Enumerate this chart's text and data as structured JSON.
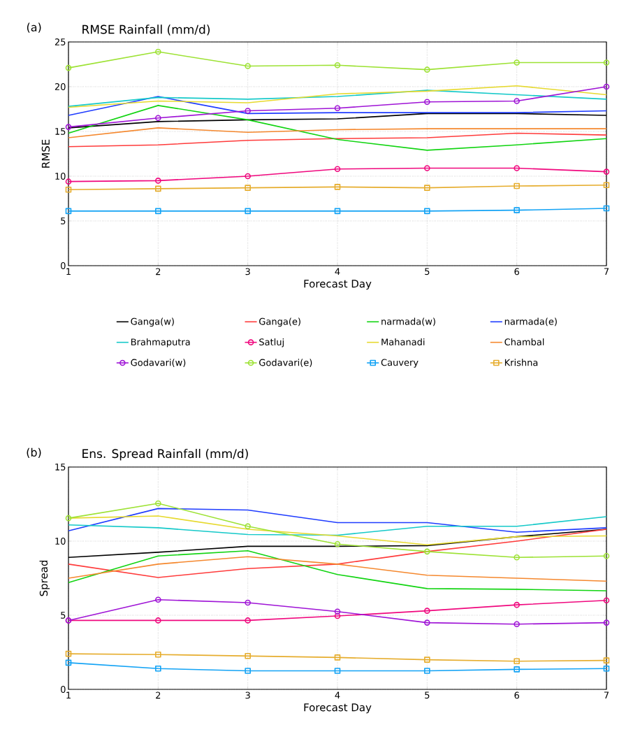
{
  "chart_data": [
    {
      "type": "line",
      "title": "RMSE Rainfall (mm/d)",
      "annotations": [
        "(a)"
      ],
      "xlabel": "Forecast Day",
      "ylabel": "RMSE",
      "x": [
        1,
        2,
        3,
        4,
        5,
        6,
        7
      ],
      "xlim": [
        1,
        7
      ],
      "xticks": [
        1,
        2,
        3,
        4,
        5,
        6,
        7
      ],
      "ylim": [
        0,
        25
      ],
      "yticks": [
        0,
        5,
        10,
        15,
        20,
        25
      ],
      "grid": true,
      "legend": "bottom",
      "series": [
        {
          "name": "Ganga(w)",
          "color": "#000000",
          "marker": "none",
          "values": [
            15.4,
            16.1,
            16.3,
            16.4,
            17.0,
            17.0,
            16.8
          ]
        },
        {
          "name": "Ganga(e)",
          "color": "#ff3b3b",
          "marker": "none",
          "values": [
            13.3,
            13.5,
            14.0,
            14.2,
            14.3,
            14.8,
            14.6
          ]
        },
        {
          "name": "narmada(w)",
          "color": "#11d411",
          "marker": "none",
          "values": [
            14.8,
            17.9,
            16.3,
            14.1,
            12.9,
            13.5,
            14.2
          ]
        },
        {
          "name": "narmada(e)",
          "color": "#1f3cff",
          "marker": "none",
          "values": [
            16.8,
            18.9,
            17.0,
            17.1,
            17.1,
            17.1,
            17.3
          ]
        },
        {
          "name": "Brahmaputra",
          "color": "#15c9c9",
          "marker": "none",
          "values": [
            17.8,
            18.8,
            18.6,
            18.9,
            19.6,
            19.1,
            18.6
          ]
        },
        {
          "name": "Satluj",
          "color": "#f0087e",
          "marker": "circle",
          "values": [
            9.4,
            9.5,
            10.0,
            10.8,
            10.9,
            10.9,
            10.5
          ]
        },
        {
          "name": "Mahanadi",
          "color": "#e6d92e",
          "marker": "none",
          "values": [
            17.7,
            18.4,
            18.2,
            19.2,
            19.5,
            20.1,
            19.1
          ]
        },
        {
          "name": "Chambal",
          "color": "#f5882e",
          "marker": "none",
          "values": [
            14.3,
            15.4,
            14.9,
            15.2,
            15.3,
            15.3,
            15.3
          ]
        },
        {
          "name": "Godavari(w)",
          "color": "#9f14d6",
          "marker": "circle",
          "values": [
            15.5,
            16.5,
            17.3,
            17.6,
            18.3,
            18.4,
            20.0
          ]
        },
        {
          "name": "Godavari(e)",
          "color": "#9de234",
          "marker": "circle",
          "values": [
            22.1,
            23.9,
            22.3,
            22.4,
            21.9,
            22.7,
            22.7
          ]
        },
        {
          "name": "Cauvery",
          "color": "#13a3f5",
          "marker": "square",
          "values": [
            6.1,
            6.1,
            6.1,
            6.1,
            6.1,
            6.2,
            6.4
          ]
        },
        {
          "name": "Krishna",
          "color": "#e6ad2e",
          "marker": "square",
          "values": [
            8.5,
            8.6,
            8.7,
            8.8,
            8.7,
            8.9,
            9.0
          ]
        }
      ]
    },
    {
      "type": "line",
      "title": "Ens. Spread Rainfall (mm/d)",
      "annotations": [
        "(b)"
      ],
      "xlabel": "Forecast Day",
      "ylabel": "Spread",
      "x": [
        1,
        2,
        3,
        4,
        5,
        6,
        7
      ],
      "xlim": [
        1,
        7
      ],
      "xticks": [
        1,
        2,
        3,
        4,
        5,
        6,
        7
      ],
      "ylim": [
        0,
        15
      ],
      "yticks": [
        0,
        5,
        10,
        15
      ],
      "grid": true,
      "series": [
        {
          "color": "#000000",
          "marker": "none",
          "values": [
            8.9,
            9.25,
            9.65,
            9.65,
            9.7,
            10.3,
            10.8
          ]
        },
        {
          "color": "#ff3b3b",
          "marker": "none",
          "values": [
            8.45,
            7.55,
            8.15,
            8.45,
            9.3,
            10.0,
            10.8
          ]
        },
        {
          "color": "#11d411",
          "marker": "none",
          "values": [
            7.2,
            9.0,
            9.35,
            7.75,
            6.8,
            6.75,
            6.65
          ]
        },
        {
          "color": "#1f3cff",
          "marker": "none",
          "values": [
            10.7,
            12.2,
            12.1,
            11.25,
            11.25,
            10.6,
            10.9
          ]
        },
        {
          "color": "#15c9c9",
          "marker": "none",
          "values": [
            11.1,
            10.9,
            10.45,
            10.4,
            11.0,
            11.0,
            11.65
          ]
        },
        {
          "color": "#f0087e",
          "marker": "circle",
          "values": [
            4.65,
            4.65,
            4.65,
            4.95,
            5.3,
            5.7,
            6.0
          ]
        },
        {
          "color": "#e6d92e",
          "marker": "none",
          "values": [
            11.55,
            11.7,
            10.8,
            10.35,
            9.75,
            10.3,
            10.35
          ]
        },
        {
          "color": "#f5882e",
          "marker": "none",
          "values": [
            7.5,
            8.45,
            8.95,
            8.45,
            7.7,
            7.5,
            7.3
          ]
        },
        {
          "color": "#9f14d6",
          "marker": "circle",
          "values": [
            4.65,
            6.05,
            5.85,
            5.25,
            4.5,
            4.4,
            4.5
          ]
        },
        {
          "color": "#9de234",
          "marker": "circle",
          "values": [
            11.55,
            12.55,
            11.0,
            9.8,
            9.3,
            8.9,
            9.0
          ]
        },
        {
          "color": "#13a3f5",
          "marker": "square",
          "values": [
            1.8,
            1.4,
            1.25,
            1.25,
            1.25,
            1.35,
            1.4
          ]
        },
        {
          "color": "#e6ad2e",
          "marker": "square",
          "values": [
            2.4,
            2.35,
            2.25,
            2.15,
            2.0,
            1.9,
            1.95
          ]
        }
      ]
    }
  ]
}
